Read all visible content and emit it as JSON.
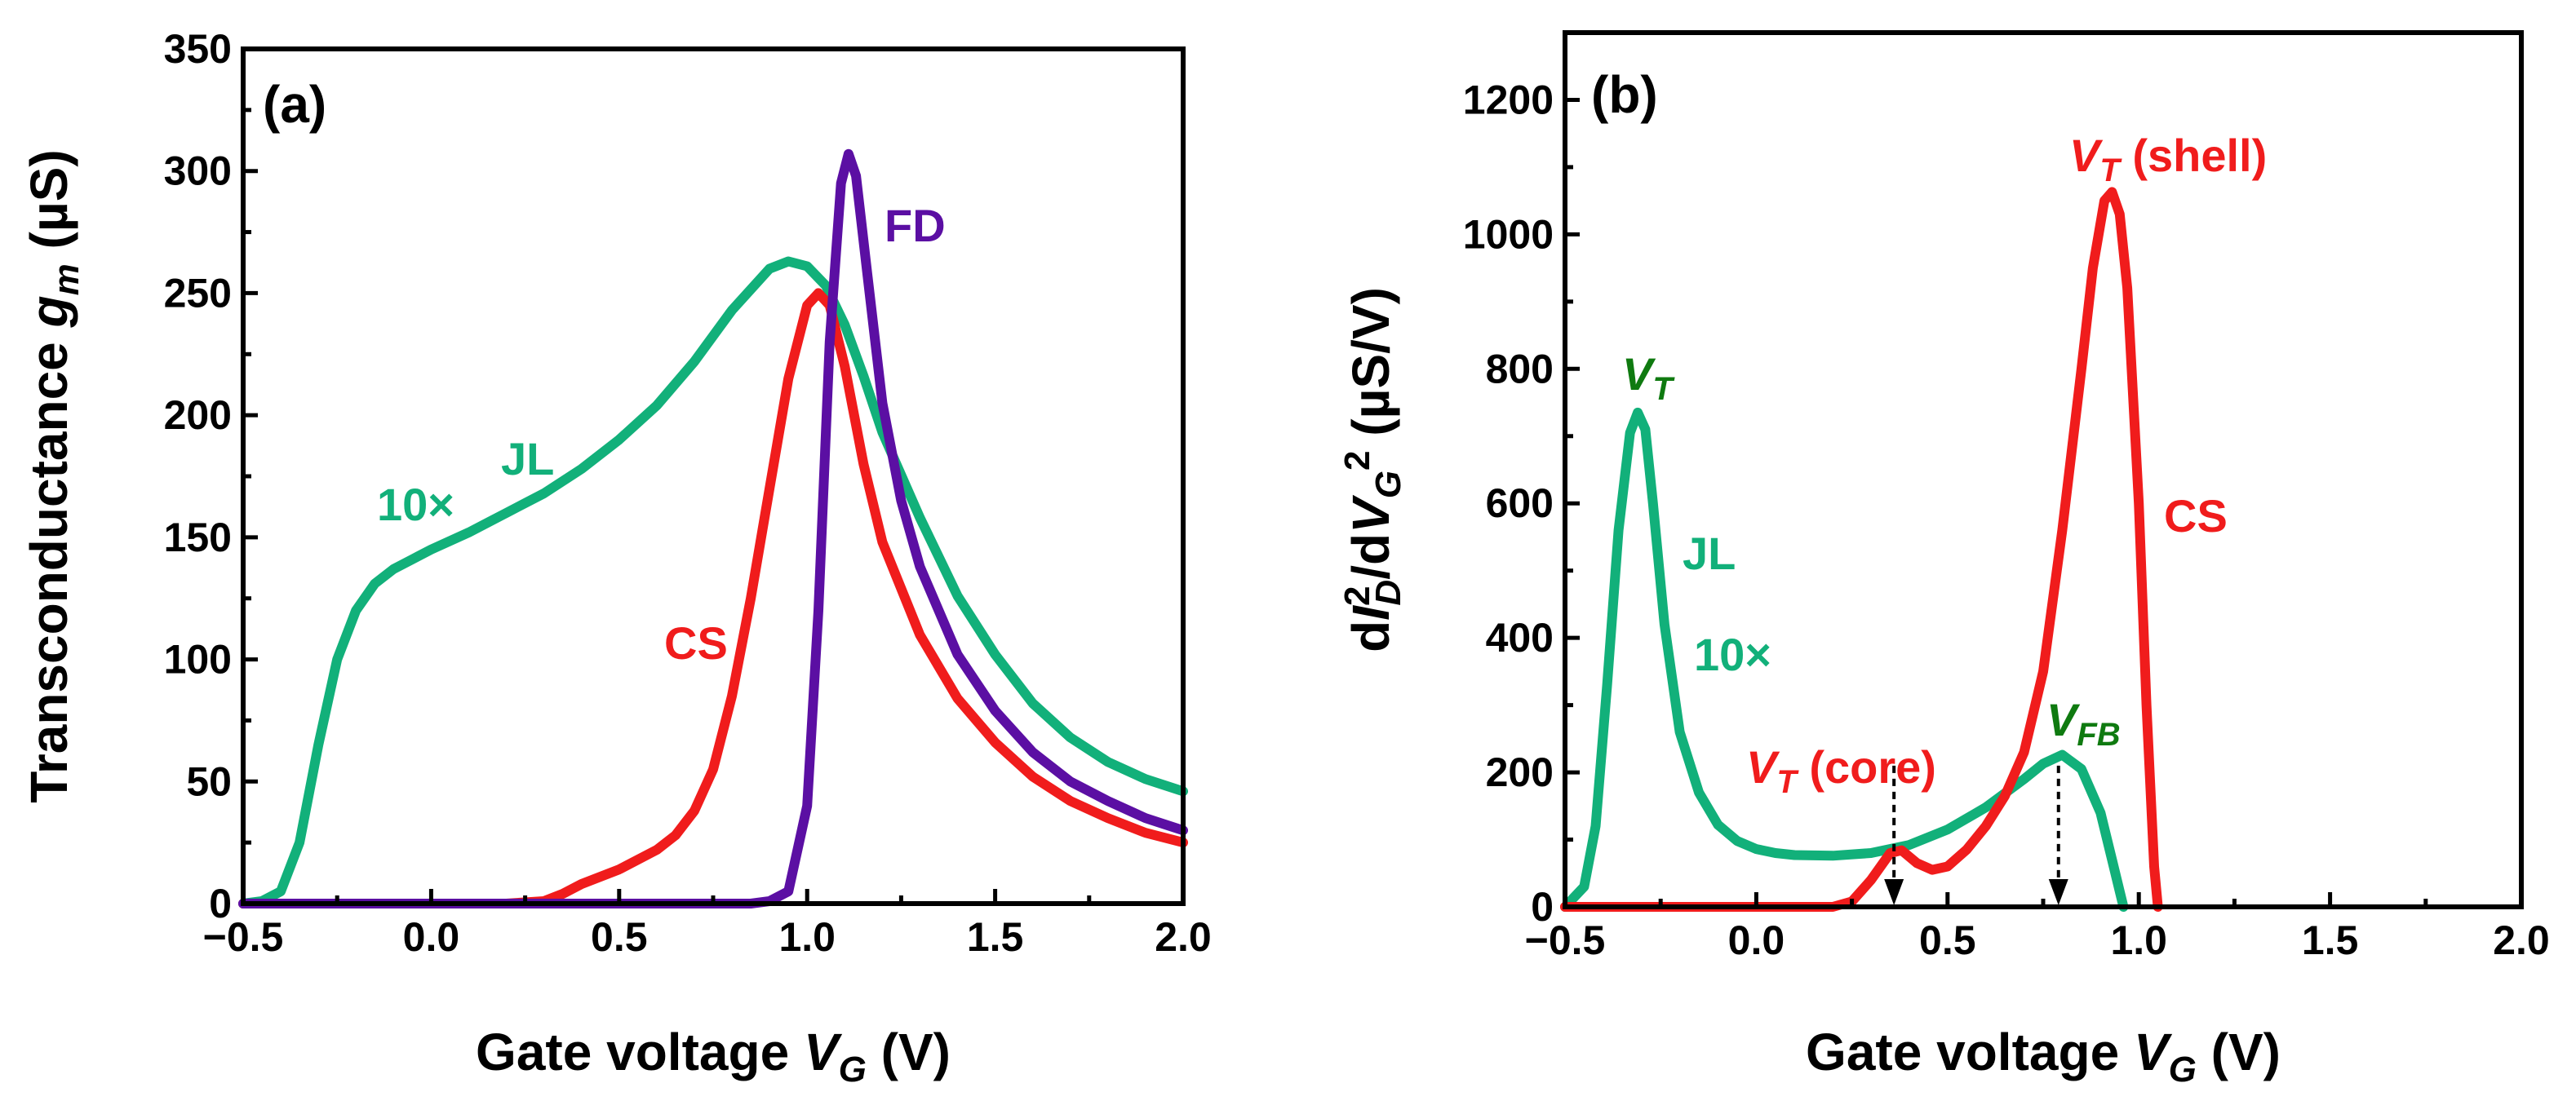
{
  "chart_data": [
    {
      "type": "line",
      "panel_label": "(a)",
      "xlabel_prefix": "Gate voltage ",
      "xlabel_var": "V",
      "xlabel_sub": "G",
      "xlabel_suffix": " (V)",
      "ylabel_prefix": "Transconductance ",
      "ylabel_var": "g",
      "ylabel_sub": "m",
      "ylabel_suffix": " (µS)",
      "xlim": [
        -0.5,
        2.0
      ],
      "ylim": [
        0,
        350
      ],
      "xticks": [
        -0.5,
        0.0,
        0.5,
        1.0,
        1.5,
        2.0
      ],
      "xtick_labels": [
        "−0.5",
        "0.0",
        "0.5",
        "1.0",
        "1.5",
        "2.0"
      ],
      "yticks": [
        0,
        50,
        100,
        150,
        200,
        250,
        300,
        350
      ],
      "ytick_labels": [
        "0",
        "50",
        "100",
        "150",
        "200",
        "250",
        "300",
        "350"
      ],
      "series": [
        {
          "name": "JL",
          "color": "#12b07a",
          "x": [
            -0.5,
            -0.45,
            -0.4,
            -0.35,
            -0.3,
            -0.25,
            -0.2,
            -0.15,
            -0.1,
            -0.05,
            0.0,
            0.1,
            0.2,
            0.3,
            0.4,
            0.5,
            0.6,
            0.7,
            0.8,
            0.9,
            0.95,
            1.0,
            1.05,
            1.1,
            1.15,
            1.2,
            1.3,
            1.4,
            1.5,
            1.6,
            1.7,
            1.8,
            1.9,
            2.0
          ],
          "y": [
            0,
            1,
            5,
            25,
            65,
            100,
            120,
            131,
            137,
            141,
            145,
            152,
            160,
            168,
            178,
            190,
            204,
            222,
            243,
            260,
            263,
            261,
            253,
            237,
            216,
            193,
            158,
            126,
            102,
            82,
            68,
            58,
            51,
            46
          ]
        },
        {
          "name": "CS",
          "color": "#f01c1c",
          "x": [
            -0.5,
            0.2,
            0.3,
            0.35,
            0.4,
            0.5,
            0.6,
            0.65,
            0.7,
            0.75,
            0.8,
            0.85,
            0.9,
            0.95,
            1.0,
            1.03,
            1.06,
            1.1,
            1.15,
            1.2,
            1.3,
            1.4,
            1.5,
            1.6,
            1.7,
            1.8,
            1.9,
            2.0
          ],
          "y": [
            0,
            0,
            1,
            4,
            8,
            14,
            22,
            28,
            38,
            55,
            85,
            125,
            170,
            215,
            245,
            250,
            245,
            220,
            180,
            148,
            110,
            84,
            66,
            52,
            42,
            35,
            29,
            25
          ]
        },
        {
          "name": "FD",
          "color": "#5b0fa3",
          "x": [
            -0.5,
            0.85,
            0.9,
            0.95,
            1.0,
            1.03,
            1.06,
            1.09,
            1.11,
            1.13,
            1.16,
            1.2,
            1.25,
            1.3,
            1.4,
            1.5,
            1.6,
            1.7,
            1.8,
            1.9,
            2.0
          ],
          "y": [
            0,
            0,
            1,
            5,
            40,
            120,
            230,
            295,
            307,
            298,
            258,
            205,
            165,
            138,
            102,
            79,
            62,
            50,
            42,
            35,
            30
          ]
        }
      ],
      "annotations": [
        {
          "text": "FD",
          "color": "#5b0fa3"
        },
        {
          "text": "JL",
          "color": "#12b07a"
        },
        {
          "text": "10×",
          "color": "#12b07a"
        },
        {
          "text": "CS",
          "color": "#f01c1c"
        }
      ]
    },
    {
      "type": "line",
      "panel_label": "(b)",
      "xlabel_prefix": "Gate voltage ",
      "xlabel_var": "V",
      "xlabel_sub": "G",
      "xlabel_suffix": " (V)",
      "ylabel_pre": "d",
      "ylabel_var1": "I",
      "ylabel_sup1": "2",
      "ylabel_sub1": "D",
      "ylabel_mid": "/d",
      "ylabel_var2": "V",
      "ylabel_sub2": "G",
      "ylabel_sup2": "2",
      "ylabel_suffix": " (µS/V)",
      "xlim": [
        -0.5,
        2.0
      ],
      "ylim": [
        0,
        1300
      ],
      "xticks": [
        -0.5,
        0.0,
        0.5,
        1.0,
        1.5,
        2.0
      ],
      "xtick_labels": [
        "−0.5",
        "0.0",
        "0.5",
        "1.0",
        "1.5",
        "2.0"
      ],
      "yticks": [
        0,
        200,
        400,
        600,
        800,
        1000,
        1200
      ],
      "ytick_labels": [
        "0",
        "200",
        "400",
        "600",
        "800",
        "1000",
        "1200"
      ],
      "series": [
        {
          "name": "JL",
          "color": "#12b07a",
          "x": [
            -0.5,
            -0.45,
            -0.42,
            -0.39,
            -0.36,
            -0.33,
            -0.31,
            -0.29,
            -0.27,
            -0.24,
            -0.2,
            -0.15,
            -0.1,
            -0.05,
            0.0,
            0.05,
            0.1,
            0.2,
            0.3,
            0.4,
            0.5,
            0.6,
            0.7,
            0.75,
            0.8,
            0.85,
            0.9,
            0.93,
            0.96
          ],
          "y": [
            0,
            30,
            120,
            330,
            560,
            705,
            735,
            710,
            600,
            420,
            260,
            170,
            122,
            98,
            86,
            80,
            77,
            76,
            80,
            92,
            115,
            148,
            190,
            213,
            226,
            205,
            140,
            70,
            0
          ]
        },
        {
          "name": "CS",
          "color": "#f01c1c",
          "x": [
            -0.5,
            0.2,
            0.25,
            0.3,
            0.35,
            0.38,
            0.42,
            0.46,
            0.5,
            0.55,
            0.6,
            0.65,
            0.7,
            0.75,
            0.8,
            0.85,
            0.88,
            0.91,
            0.93,
            0.95,
            0.97,
            1.0,
            1.02,
            1.04,
            1.05
          ],
          "y": [
            0,
            0,
            8,
            40,
            80,
            84,
            65,
            55,
            60,
            85,
            120,
            165,
            230,
            350,
            560,
            800,
            950,
            1050,
            1063,
            1030,
            920,
            600,
            300,
            60,
            0
          ]
        }
      ],
      "annotations": [
        {
          "text": "VT",
          "var": "V",
          "sub": "T",
          "color": "#0f7a10"
        },
        {
          "text": "JL",
          "color": "#12b07a"
        },
        {
          "text": "10×",
          "color": "#12b07a"
        },
        {
          "text": "CS",
          "color": "#f01c1c"
        },
        {
          "text": "VFB",
          "var": "V",
          "sub": "FB",
          "color": "#0f7a10"
        },
        {
          "text": "VT (core)",
          "var": "V",
          "sub": "T",
          "rest": " (core)",
          "color": "#f01c1c"
        },
        {
          "text": "VT (shell)",
          "var": "V",
          "sub": "T",
          "rest": " (shell)",
          "color": "#f01c1c"
        }
      ],
      "arrows": [
        {
          "name": "core",
          "x": 0.36,
          "y_from": 210,
          "y_to": 0
        },
        {
          "name": "flatband",
          "x": 0.79,
          "y_from": 210,
          "y_to": 0
        }
      ]
    }
  ]
}
